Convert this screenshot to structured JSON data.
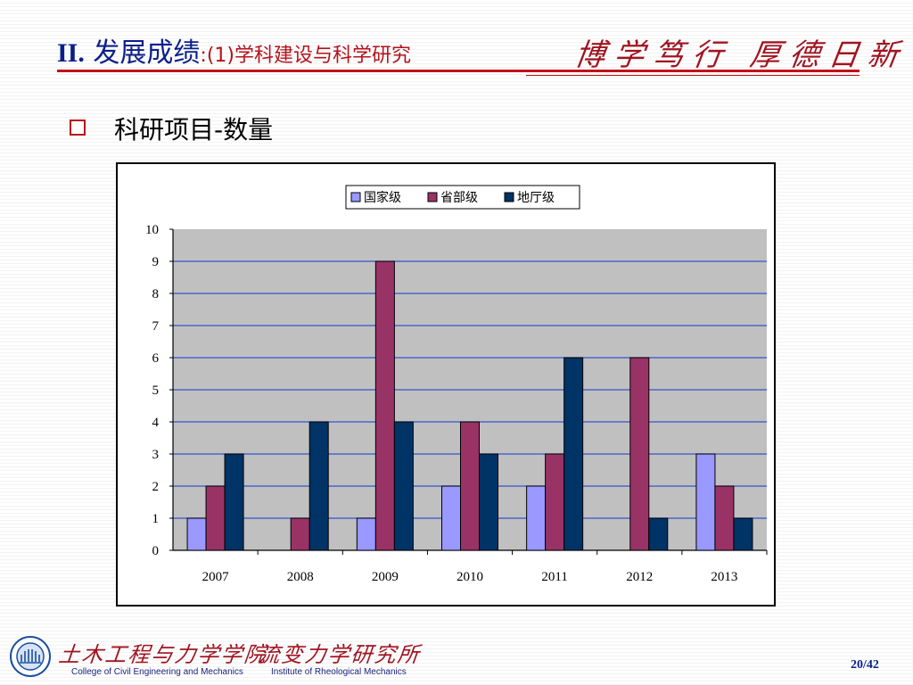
{
  "header": {
    "title_roman": "II.",
    "title_text": "发展成绩",
    "title_sub": ":(1)学科建设与科学研究",
    "motto": "博学笃行 厚德日新"
  },
  "section": {
    "heading": "科研项目-数量"
  },
  "chart_data": {
    "type": "bar",
    "categories": [
      "2007",
      "2008",
      "2009",
      "2010",
      "2011",
      "2012",
      "2013"
    ],
    "series": [
      {
        "name": "国家级",
        "values": [
          1,
          0,
          1,
          2,
          2,
          0,
          3
        ],
        "color": "#9999ff"
      },
      {
        "name": "省部级",
        "values": [
          2,
          1,
          9,
          4,
          3,
          6,
          2
        ],
        "color": "#993366"
      },
      {
        "name": "地厅级",
        "values": [
          3,
          4,
          4,
          3,
          6,
          1,
          1
        ],
        "color": "#003366"
      }
    ],
    "ylim": [
      0,
      10
    ],
    "yticks": [
      "0",
      "1",
      "2",
      "3",
      "4",
      "5",
      "6",
      "7",
      "8",
      "9",
      "10"
    ],
    "grid": true,
    "legend_position": "top",
    "plot_background": "#c0c0c0",
    "gridline_color": "#3355cc"
  },
  "footer": {
    "college_cn": "土木工程与力学学院",
    "college_en": "College of Civil Engineering and Mechanics",
    "institute_cn": "流变力学研究所",
    "institute_en": "Institute of Rheological Mechanics",
    "page": "20/42"
  },
  "colors": {
    "title_blue": "#0a1f8a",
    "accent_red": "#c0121b"
  }
}
